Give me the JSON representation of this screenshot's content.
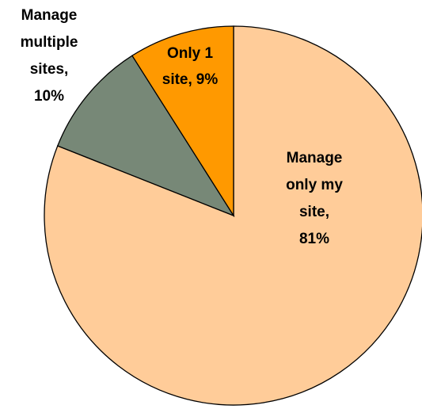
{
  "chart_data": {
    "type": "pie",
    "labels": [
      [
        "Manage",
        "only my",
        "site,"
      ],
      [
        "Manage",
        "multiple",
        "sites,"
      ],
      [
        "Only 1",
        "site,"
      ]
    ],
    "values": [
      81,
      10,
      9
    ],
    "value_labels": [
      "81%",
      "10%",
      "9%"
    ],
    "colors": [
      "#FFCC99",
      "#778877",
      "#FF9900"
    ]
  }
}
